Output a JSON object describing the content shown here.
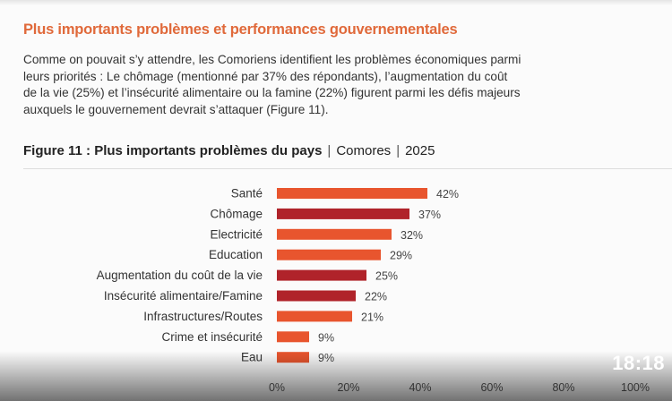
{
  "section_title": "Plus importants problèmes et performances gouvernementales",
  "paragraph": [
    "Comme on pouvait s’y attendre, les Comoriens identifient les problèmes économiques parmi",
    "leurs priorités : Le chômage (mentionné par 37% des répondants), l’augmentation du coût",
    "de la vie (25%) et l’insécurité alimentaire ou la famine (22%) figurent parmi les défis majeurs",
    "auxquels le gouvernement devrait s’attaquer (Figure 11)."
  ],
  "figure": {
    "title_bold": "Figure 11 : Plus importants problèmes du pays",
    "country": "Comores",
    "year": "2025",
    "separator": "|"
  },
  "chart_data": {
    "type": "bar",
    "orientation": "horizontal",
    "title": "Figure 11 : Plus importants problèmes du pays | Comores | 2025",
    "categories": [
      "Santé",
      "Chômage",
      "Electricité",
      "Education",
      "Augmentation du coût de la vie",
      "Insécurité alimentaire/Famine",
      "Infrastructures/Routes",
      "Crime et insécurité",
      "Eau"
    ],
    "values": [
      42,
      37,
      32,
      29,
      25,
      22,
      21,
      9,
      9
    ],
    "value_labels": [
      "42%",
      "37%",
      "32%",
      "29%",
      "25%",
      "22%",
      "21%",
      "9%",
      "9%"
    ],
    "highlight": [
      false,
      true,
      false,
      false,
      true,
      true,
      false,
      false,
      false
    ],
    "xlim": [
      0,
      100
    ],
    "xticks": [
      "0%",
      "20%",
      "40%",
      "60%",
      "80%",
      "100%"
    ],
    "grid": false,
    "colors": {
      "default": "#e8552e",
      "highlight": "#b0232a"
    }
  },
  "video": {
    "timestamp": "18:18"
  }
}
